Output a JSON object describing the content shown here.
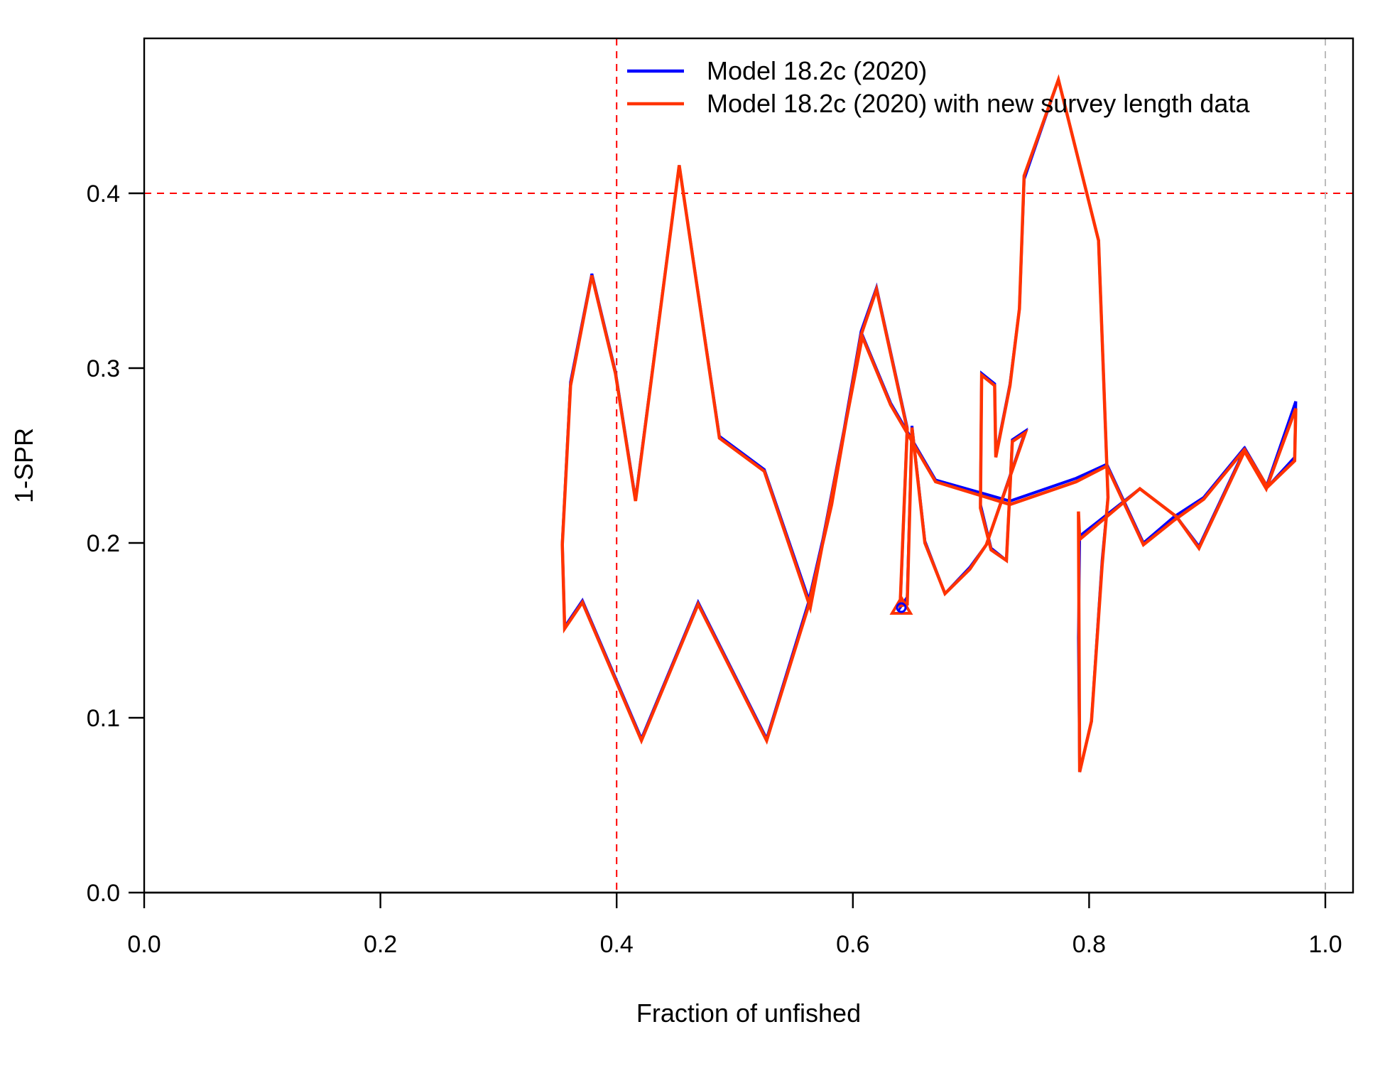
{
  "chart_data": {
    "type": "line",
    "title": "",
    "xlabel": "Fraction of unfished",
    "ylabel": "1-SPR",
    "xlim": [
      0.0,
      1.0
    ],
    "ylim": [
      0.0,
      0.46
    ],
    "xticks": [
      "0.0",
      "0.2",
      "0.4",
      "0.6",
      "0.8",
      "1.0"
    ],
    "yticks": [
      "0.0",
      "0.1",
      "0.2",
      "0.3",
      "0.4"
    ],
    "legend_position": "top-right",
    "reference_lines": {
      "target_fraction": 0.4,
      "target_spr": 0.4,
      "unfished": 1.0
    },
    "series": [
      {
        "name": "Model 18.2c (2020)",
        "color": "#0000ff",
        "x": [
          0.975,
          0.974,
          0.951,
          0.932,
          0.893,
          0.874,
          0.843,
          0.792,
          0.791,
          0.792,
          0.802,
          0.811,
          0.816,
          0.808,
          0.774,
          0.745,
          0.741,
          0.733,
          0.721,
          0.72,
          0.709,
          0.708,
          0.717,
          0.73,
          0.735,
          0.746,
          0.713,
          0.699,
          0.678,
          0.661,
          0.65,
          0.646,
          0.64,
          0.646,
          0.62,
          0.607,
          0.582,
          0.562,
          0.527,
          0.469,
          0.421,
          0.371,
          0.356,
          0.354,
          0.361,
          0.379,
          0.399,
          0.416,
          0.453,
          0.487,
          0.525,
          0.564,
          0.608,
          0.632,
          0.67,
          0.733,
          0.789,
          0.815,
          0.846,
          0.872,
          0.897,
          0.931,
          0.95,
          0.975
        ],
        "y": [
          0.281,
          0.249,
          0.232,
          0.254,
          0.198,
          0.215,
          0.231,
          0.204,
          0.146,
          0.069,
          0.098,
          0.19,
          0.226,
          0.373,
          0.465,
          0.408,
          0.334,
          0.291,
          0.25,
          0.291,
          0.297,
          0.222,
          0.197,
          0.19,
          0.259,
          0.264,
          0.199,
          0.186,
          0.171,
          0.201,
          0.267,
          0.169,
          0.163,
          0.266,
          0.346,
          0.321,
          0.224,
          0.165,
          0.088,
          0.166,
          0.088,
          0.167,
          0.152,
          0.2,
          0.292,
          0.354,
          0.298,
          0.225,
          0.416,
          0.261,
          0.242,
          0.165,
          0.319,
          0.28,
          0.236,
          0.224,
          0.237,
          0.245,
          0.2,
          0.215,
          0.226,
          0.254,
          0.232,
          0.281
        ]
      },
      {
        "name": "Model 18.2c (2020) with new survey length data",
        "color": "#ff3300",
        "x": [
          0.975,
          0.974,
          0.951,
          0.932,
          0.893,
          0.874,
          0.843,
          0.792,
          0.791,
          0.792,
          0.802,
          0.811,
          0.816,
          0.808,
          0.774,
          0.745,
          0.741,
          0.733,
          0.721,
          0.72,
          0.709,
          0.708,
          0.717,
          0.73,
          0.735,
          0.746,
          0.713,
          0.699,
          0.678,
          0.661,
          0.65,
          0.646,
          0.64,
          0.646,
          0.62,
          0.607,
          0.582,
          0.562,
          0.527,
          0.469,
          0.421,
          0.371,
          0.356,
          0.354,
          0.361,
          0.379,
          0.399,
          0.416,
          0.453,
          0.487,
          0.525,
          0.564,
          0.608,
          0.632,
          0.67,
          0.733,
          0.789,
          0.815,
          0.846,
          0.872,
          0.897,
          0.931,
          0.95,
          0.975
        ],
        "y": [
          0.277,
          0.247,
          0.232,
          0.253,
          0.197,
          0.215,
          0.231,
          0.202,
          0.218,
          0.069,
          0.098,
          0.187,
          0.226,
          0.373,
          0.465,
          0.41,
          0.334,
          0.29,
          0.249,
          0.29,
          0.296,
          0.22,
          0.196,
          0.19,
          0.258,
          0.263,
          0.199,
          0.185,
          0.171,
          0.2,
          0.266,
          0.165,
          0.164,
          0.265,
          0.345,
          0.319,
          0.222,
          0.163,
          0.087,
          0.165,
          0.087,
          0.166,
          0.151,
          0.199,
          0.29,
          0.353,
          0.297,
          0.224,
          0.416,
          0.26,
          0.241,
          0.163,
          0.318,
          0.279,
          0.235,
          0.222,
          0.235,
          0.244,
          0.199,
          0.213,
          0.225,
          0.253,
          0.231,
          0.277
        ]
      }
    ],
    "end_marker": {
      "shape": "triangle",
      "x": 0.641,
      "y": 0.163
    },
    "start_marker": {
      "shape": "circle",
      "x": 0.641,
      "y": 0.163
    }
  }
}
